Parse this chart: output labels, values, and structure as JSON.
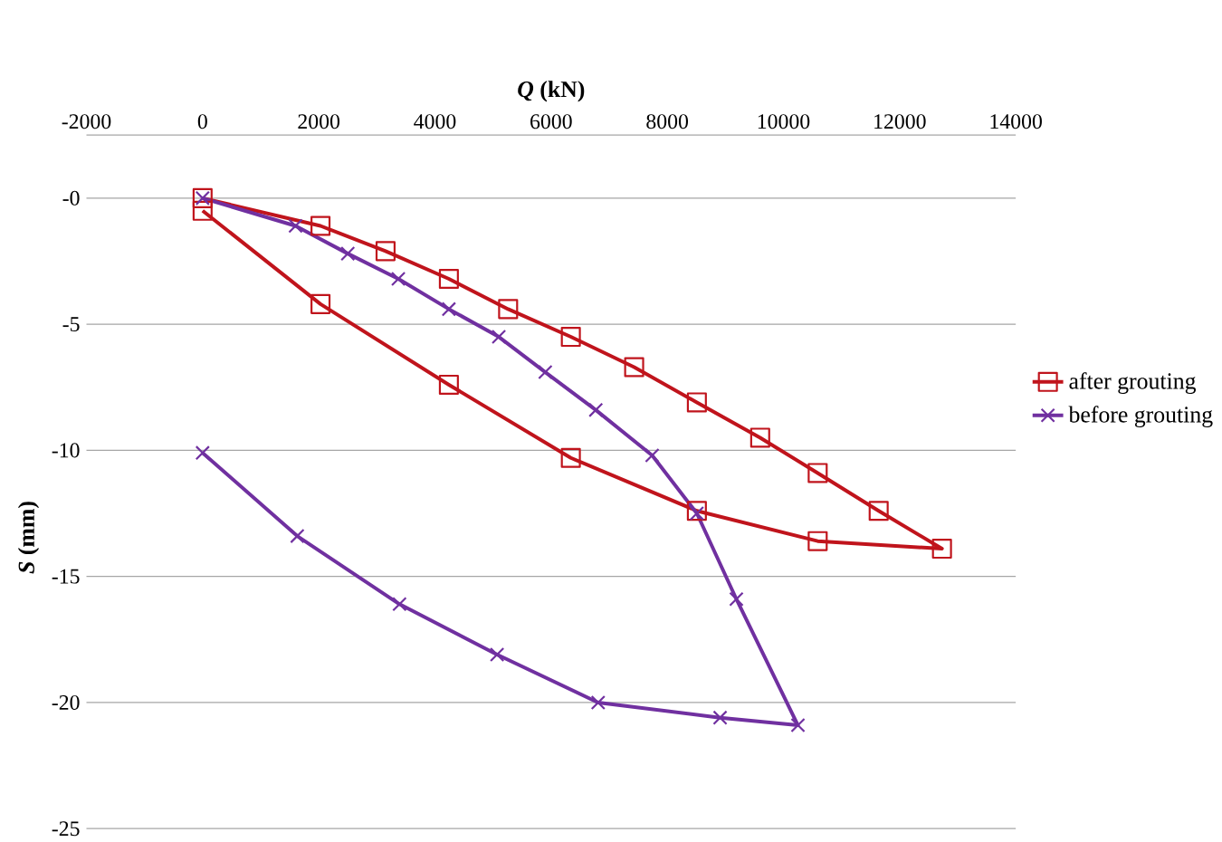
{
  "chart_data": {
    "type": "line",
    "xlabel": "*Q* (kN)",
    "ylabel": "*S* (mm)",
    "xlim": [
      -2000,
      14000
    ],
    "xticks": [
      -2000,
      0,
      2000,
      4000,
      6000,
      8000,
      10000,
      12000,
      14000
    ],
    "ylim": [
      -25,
      2.5
    ],
    "yticks": [
      {
        "value": 0,
        "label": "-0"
      },
      -5,
      -10,
      -15,
      -20,
      -25
    ],
    "grid": "y",
    "legend": "right",
    "line_style": "solid",
    "series": [
      {
        "name": "after grouting",
        "color": "#c0141c",
        "marker": "square",
        "x": [
          0,
          2030,
          3150,
          4240,
          5260,
          6340,
          7430,
          8510,
          9600,
          10590,
          11640,
          12730,
          10590,
          8510,
          6340,
          4240,
          2030,
          0
        ],
        "values": [
          0,
          -1.1,
          -2.1,
          -3.2,
          -4.4,
          -5.5,
          -6.7,
          -8.1,
          -9.5,
          -10.9,
          -12.4,
          -13.9,
          -13.6,
          -12.4,
          -10.3,
          -7.4,
          -4.2,
          -0.5
        ]
      },
      {
        "name": "before grouting",
        "color": "#7030a0",
        "marker": "cross",
        "x": [
          0,
          1600,
          2500,
          3370,
          4240,
          5100,
          5900,
          6770,
          7740,
          8510,
          9190,
          10250,
          8910,
          6810,
          5070,
          3390,
          1630,
          0
        ],
        "values": [
          0,
          -1.1,
          -2.2,
          -3.2,
          -4.4,
          -5.5,
          -6.9,
          -8.4,
          -10.2,
          -12.5,
          -15.9,
          -20.9,
          -20.6,
          -20.0,
          -18.1,
          -16.1,
          -13.4,
          -10.1
        ]
      }
    ]
  }
}
